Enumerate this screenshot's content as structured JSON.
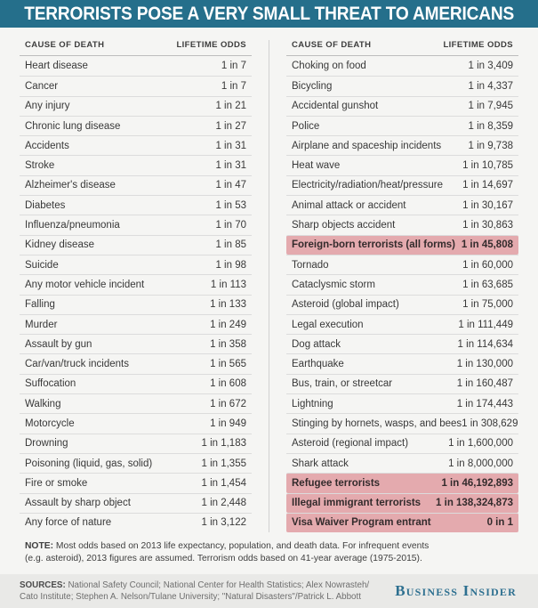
{
  "chart_data": {
    "type": "table",
    "title": "TERRORISTS POSE A VERY SMALL THREAT TO AMERICANS",
    "column_headers": {
      "cause": "CAUSE OF DEATH",
      "odds": "LIFETIME ODDS"
    },
    "highlight_meaning": "terrorism-related odds",
    "left_table": [
      {
        "cause": "Heart disease",
        "odds": "1 in 7"
      },
      {
        "cause": "Cancer",
        "odds": "1 in 7"
      },
      {
        "cause": "Any injury",
        "odds": "1 in 21"
      },
      {
        "cause": "Chronic lung disease",
        "odds": "1 in 27"
      },
      {
        "cause": "Accidents",
        "odds": "1 in 31"
      },
      {
        "cause": "Stroke",
        "odds": "1 in 31"
      },
      {
        "cause": "Alzheimer's disease",
        "odds": "1 in 47"
      },
      {
        "cause": "Diabetes",
        "odds": "1 in 53"
      },
      {
        "cause": "Influenza/pneumonia",
        "odds": "1 in 70"
      },
      {
        "cause": "Kidney disease",
        "odds": "1 in 85"
      },
      {
        "cause": "Suicide",
        "odds": "1 in 98"
      },
      {
        "cause": "Any motor vehicle incident",
        "odds": "1 in 113"
      },
      {
        "cause": "Falling",
        "odds": "1 in 133"
      },
      {
        "cause": "Murder",
        "odds": "1 in 249"
      },
      {
        "cause": "Assault by gun",
        "odds": "1 in 358"
      },
      {
        "cause": "Car/van/truck incidents",
        "odds": "1 in 565"
      },
      {
        "cause": "Suffocation",
        "odds": "1 in 608"
      },
      {
        "cause": "Walking",
        "odds": "1 in 672"
      },
      {
        "cause": "Motorcycle",
        "odds": "1 in 949"
      },
      {
        "cause": "Drowning",
        "odds": "1 in 1,183"
      },
      {
        "cause": "Poisoning (liquid, gas, solid)",
        "odds": "1 in 1,355"
      },
      {
        "cause": "Fire or smoke",
        "odds": "1 in 1,454"
      },
      {
        "cause": "Assault by sharp object",
        "odds": "1 in 2,448"
      },
      {
        "cause": "Any force of nature",
        "odds": "1 in 3,122"
      }
    ],
    "right_table": [
      {
        "cause": "Choking on food",
        "odds": "1 in 3,409"
      },
      {
        "cause": "Bicycling",
        "odds": "1 in 4,337"
      },
      {
        "cause": "Accidental gunshot",
        "odds": "1 in 7,945"
      },
      {
        "cause": "Police",
        "odds": "1 in 8,359"
      },
      {
        "cause": "Airplane and spaceship incidents",
        "odds": "1 in 9,738"
      },
      {
        "cause": "Heat wave",
        "odds": "1 in 10,785"
      },
      {
        "cause": "Electricity/radiation/heat/pressure",
        "odds": "1 in 14,697"
      },
      {
        "cause": "Animal attack or accident",
        "odds": "1 in 30,167"
      },
      {
        "cause": "Sharp objects accident",
        "odds": "1 in 30,863"
      },
      {
        "cause": "Foreign-born terrorists (all forms)",
        "odds": "1 in 45,808",
        "highlight": true
      },
      {
        "cause": "Tornado",
        "odds": "1 in 60,000"
      },
      {
        "cause": "Cataclysmic storm",
        "odds": "1 in 63,685"
      },
      {
        "cause": "Asteroid (global impact)",
        "odds": "1 in 75,000"
      },
      {
        "cause": "Legal execution",
        "odds": "1 in 111,449"
      },
      {
        "cause": "Dog attack",
        "odds": "1 in 114,634"
      },
      {
        "cause": "Earthquake",
        "odds": "1 in 130,000"
      },
      {
        "cause": "Bus, train, or streetcar",
        "odds": "1 in 160,487"
      },
      {
        "cause": "Lightning",
        "odds": "1 in 174,443"
      },
      {
        "cause": "Stinging by hornets, wasps, and bees",
        "odds": "1 in 308,629"
      },
      {
        "cause": "Asteroid (regional impact)",
        "odds": "1 in 1,600,000"
      },
      {
        "cause": "Shark attack",
        "odds": "1 in 8,000,000"
      },
      {
        "cause": "Refugee terrorists",
        "odds": "1 in 46,192,893",
        "highlight": true
      },
      {
        "cause": "Illegal immigrant terrorists",
        "odds": "1 in 138,324,873",
        "highlight": true
      },
      {
        "cause": "Visa Waiver Program entrant",
        "odds": "0 in 1",
        "highlight": true
      }
    ]
  },
  "note": {
    "label": "NOTE:",
    "line1": "Most odds based on 2013 life expectancy, population, and death data. For infrequent events",
    "line2": "(e.g. asteroid), 2013 figures are assumed. Terrorism odds based on 41-year average (1975-2015)."
  },
  "sources": {
    "label": "SOURCES:",
    "line1": "National Safety Council; National Center for Health Statistics; Alex Nowrasteh/",
    "line2": "Cato Institute; Stephen A. Nelson/Tulane University; \"Natural Disasters\"/Patrick L. Abbott"
  },
  "brand": "Business Insider",
  "colors": {
    "banner_teal": "#256f8b",
    "highlight_pink": "#e4aaae",
    "brand_blue": "#2e7090",
    "page_bg": "#f5f5f3",
    "footer_bg": "#e9e9e7"
  }
}
